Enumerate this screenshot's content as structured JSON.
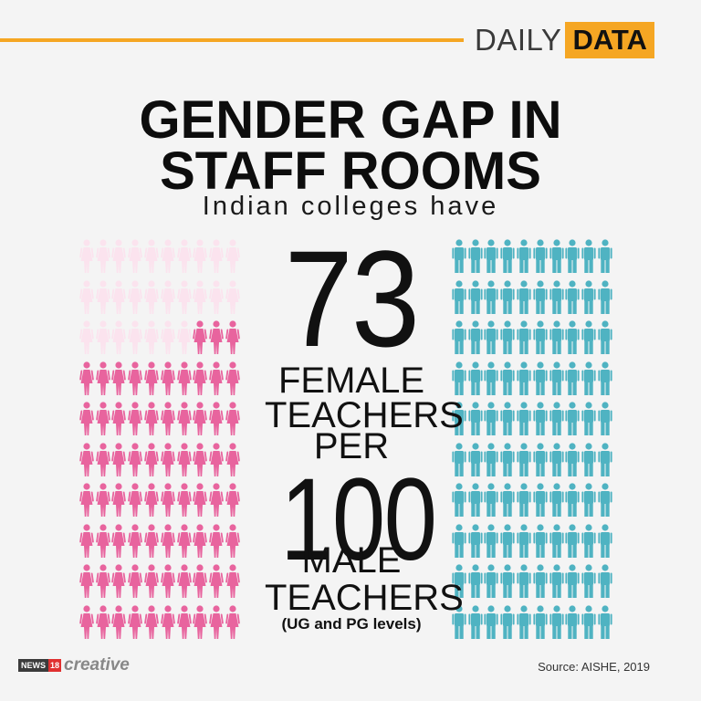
{
  "brand": {
    "daily": "DAILY",
    "data": "DATA"
  },
  "title": {
    "line1": "GENDER GAP IN",
    "line2": "STAFF ROOMS"
  },
  "subtitle": "Indian colleges have",
  "center": {
    "number1": "73",
    "line1": "FEMALE",
    "line2": "TEACHERS",
    "line3": "PER",
    "number2": "100",
    "line4": "MALE",
    "line5": "TEACHERS",
    "note": "(UG and PG levels)"
  },
  "footer": {
    "logo_news": "NEWS",
    "logo_18": "18",
    "logo_creative": "creative",
    "source": "Source: AISHE, 2019"
  },
  "pictogram": {
    "female": {
      "total": 100,
      "filled": 73,
      "icon": "female-person-icon",
      "color": "#e8649e",
      "faded_color": "#fbe3ee"
    },
    "male": {
      "total": 100,
      "filled": 100,
      "icon": "male-person-icon",
      "color": "#4fb3c2"
    }
  },
  "colors": {
    "accent": "#f5a623",
    "text": "#0d0d0d"
  }
}
